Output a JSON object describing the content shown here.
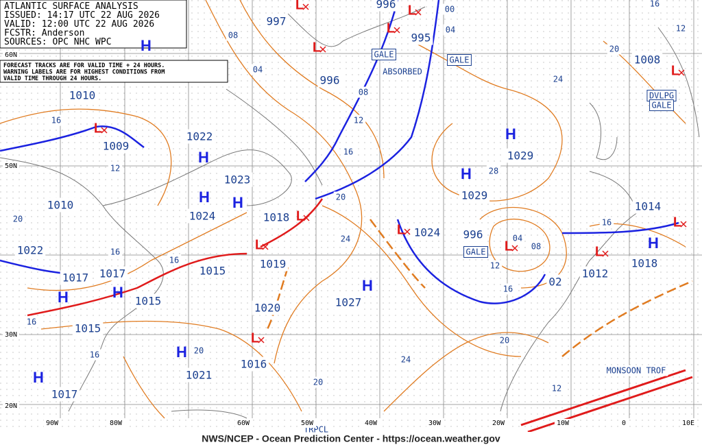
{
  "header": {
    "lines": [
      "ATLANTIC SURFACE ANALYSIS",
      "ISSUED: 14:17 UTC 22 AUG 2026",
      "VALID: 12:00 UTC 22 AUG 2026",
      "FCSTR: Anderson",
      "SOURCES: OPC NHC WPC"
    ]
  },
  "note": [
    "FORECAST TRACKS ARE FOR VALID TIME + 24 HOURS.",
    "WARNING LABELS ARE FOR HIGHEST CONDITIONS FROM",
    "VALID TIME THROUGH 24 HOURS."
  ],
  "symbols": {
    "high": "H",
    "low": "L"
  },
  "pressure_labels": [
    "997",
    "996",
    "995",
    "996",
    "1010",
    "1009",
    "1022",
    "1023",
    "1029",
    "1029",
    "1010",
    "1024",
    "1018",
    "1024",
    "996",
    "1022",
    "1019",
    "1017",
    "1017",
    "1015",
    "1015",
    "1027",
    "1020",
    "1015",
    "1016",
    "1021",
    "1017",
    "1008",
    "1014",
    "1012",
    "1018",
    "02"
  ],
  "isobar_labels": [
    "08",
    "04",
    "00",
    "04",
    "08",
    "12",
    "16",
    "20",
    "24",
    "12",
    "16",
    "20",
    "16",
    "16",
    "16",
    "16",
    "20",
    "20",
    "24",
    "20",
    "16",
    "12",
    "04",
    "08",
    "28",
    "24",
    "20",
    "16",
    "12",
    "16",
    "12"
  ],
  "warnings": [
    "GALE",
    "GALE",
    "GALE",
    "DVLPG",
    "GALE"
  ],
  "features": [
    "ABSORBED",
    "MONSOON TROF",
    "TRPCL"
  ],
  "lat_labels": [
    "60N",
    "50N",
    "30N",
    "20N"
  ],
  "lon_labels": [
    "90W",
    "80W",
    "60W",
    "50W",
    "40W",
    "30W",
    "20W",
    "10W",
    "0",
    "10E"
  ],
  "footer": "NWS/NCEP - Ocean Prediction Center - https://ocean.weather.gov"
}
